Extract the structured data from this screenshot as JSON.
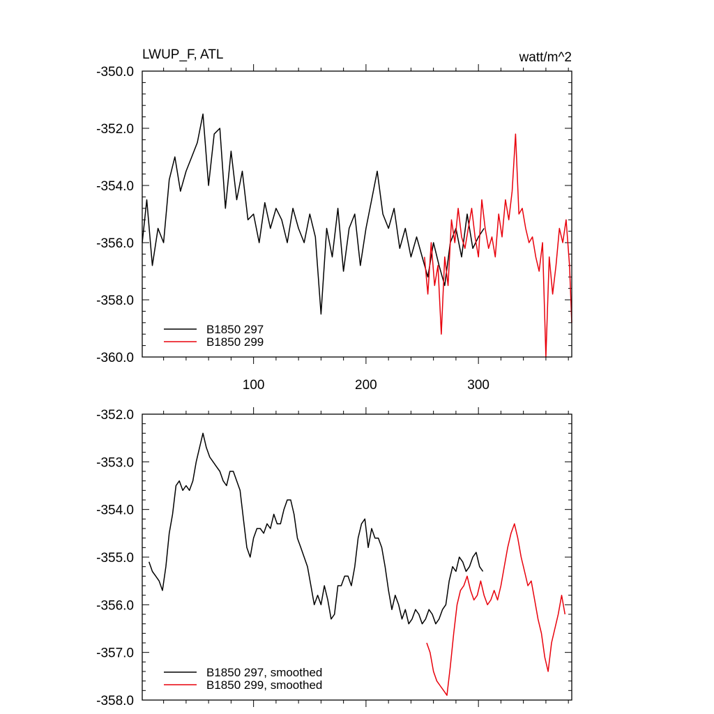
{
  "chart_data": [
    {
      "type": "line",
      "title_left": "LWUP_F, ATL",
      "title_right": "watt/m^2",
      "xlim": [
        1,
        383
      ],
      "ylim": [
        -360,
        -350
      ],
      "yticks": [
        -350,
        -352,
        -354,
        -356,
        -358,
        -360
      ],
      "ytick_labels": [
        "-350.0",
        "-352.0",
        "-354.0",
        "-356.0",
        "-358.0",
        "-360.0"
      ],
      "xticks": [
        100,
        200,
        300
      ],
      "xtick_labels": [
        "100",
        "200",
        "300"
      ],
      "legend_position": "bottom-left",
      "series": [
        {
          "name": "B1850 297",
          "color": "#000000",
          "x": [
            1,
            5,
            10,
            15,
            20,
            25,
            30,
            35,
            40,
            45,
            50,
            55,
            60,
            65,
            70,
            75,
            80,
            85,
            90,
            95,
            100,
            105,
            110,
            115,
            120,
            125,
            130,
            135,
            140,
            145,
            150,
            155,
            160,
            165,
            170,
            175,
            180,
            185,
            190,
            195,
            200,
            205,
            210,
            215,
            220,
            225,
            230,
            235,
            240,
            245,
            250,
            255,
            260,
            265,
            270,
            275,
            280,
            285,
            290,
            295,
            300,
            305
          ],
          "y": [
            -356.0,
            -354.5,
            -356.8,
            -355.5,
            -356.0,
            -353.8,
            -353.0,
            -354.2,
            -353.5,
            -353.0,
            -352.5,
            -351.5,
            -354.0,
            -352.2,
            -352.0,
            -354.8,
            -352.8,
            -354.5,
            -353.5,
            -355.2,
            -355.0,
            -356.0,
            -354.6,
            -355.5,
            -354.8,
            -355.2,
            -356.0,
            -354.8,
            -355.5,
            -356.0,
            -355.0,
            -355.8,
            -358.5,
            -355.5,
            -356.5,
            -354.8,
            -357.0,
            -355.5,
            -355.0,
            -356.8,
            -355.5,
            -354.5,
            -353.5,
            -355.0,
            -355.5,
            -354.8,
            -356.2,
            -355.5,
            -356.5,
            -355.8,
            -356.5,
            -357.2,
            -356.0,
            -356.8,
            -357.5,
            -356.0,
            -355.5,
            -356.5,
            -355.0,
            -356.2,
            -355.8,
            -355.5
          ]
        },
        {
          "name": "B1850 299",
          "color": "#e8000b",
          "x": [
            252,
            255,
            258,
            261,
            264,
            267,
            270,
            273,
            276,
            279,
            282,
            285,
            288,
            291,
            294,
            297,
            300,
            303,
            306,
            309,
            312,
            315,
            318,
            321,
            324,
            327,
            330,
            333,
            336,
            339,
            342,
            345,
            348,
            351,
            354,
            357,
            360,
            363,
            366,
            369,
            372,
            375,
            378,
            381,
            383
          ],
          "y": [
            -356.5,
            -357.8,
            -356.0,
            -357.5,
            -356.8,
            -359.2,
            -356.5,
            -357.5,
            -355.2,
            -356.0,
            -354.8,
            -355.8,
            -356.2,
            -355.5,
            -354.8,
            -355.8,
            -356.5,
            -354.5,
            -355.5,
            -356.2,
            -355.8,
            -356.5,
            -355.0,
            -355.8,
            -354.5,
            -355.2,
            -354.2,
            -352.2,
            -355.0,
            -354.8,
            -355.5,
            -356.0,
            -355.8,
            -356.5,
            -357.0,
            -356.0,
            -360.0,
            -356.5,
            -357.8,
            -356.8,
            -355.5,
            -356.0,
            -355.2,
            -356.8,
            -358.8
          ]
        }
      ]
    },
    {
      "type": "line",
      "xlim": [
        1,
        383
      ],
      "ylim": [
        -358,
        -352
      ],
      "yticks": [
        -352,
        -353,
        -354,
        -355,
        -356,
        -357,
        -358
      ],
      "ytick_labels": [
        "-352.0",
        "-353.0",
        "-354.0",
        "-355.0",
        "-356.0",
        "-357.0",
        "-358.0"
      ],
      "xticks": [
        100,
        200,
        300
      ],
      "legend_position": "bottom-left",
      "series": [
        {
          "name": "B1850 297, smoothed",
          "color": "#000000",
          "x": [
            7,
            10,
            13,
            16,
            19,
            22,
            25,
            28,
            31,
            34,
            37,
            40,
            43,
            46,
            49,
            52,
            55,
            58,
            61,
            64,
            67,
            70,
            73,
            76,
            79,
            82,
            85,
            88,
            91,
            94,
            97,
            100,
            103,
            106,
            109,
            112,
            115,
            118,
            121,
            124,
            127,
            130,
            133,
            136,
            139,
            142,
            145,
            148,
            151,
            154,
            157,
            160,
            163,
            166,
            169,
            172,
            175,
            178,
            181,
            184,
            187,
            190,
            193,
            196,
            199,
            202,
            205,
            208,
            211,
            214,
            217,
            220,
            223,
            226,
            229,
            232,
            235,
            238,
            241,
            244,
            247,
            250,
            253,
            256,
            259,
            262,
            265,
            268,
            271,
            274,
            277,
            280,
            283,
            286,
            289,
            292,
            295,
            298,
            301,
            304
          ],
          "y": [
            -355.1,
            -355.3,
            -355.4,
            -355.5,
            -355.7,
            -355.2,
            -354.5,
            -354.1,
            -353.5,
            -353.4,
            -353.6,
            -353.5,
            -353.6,
            -353.4,
            -353.0,
            -352.7,
            -352.4,
            -352.7,
            -352.9,
            -353.0,
            -353.1,
            -353.2,
            -353.4,
            -353.5,
            -353.2,
            -353.2,
            -353.4,
            -353.6,
            -354.2,
            -354.8,
            -355.0,
            -354.6,
            -354.4,
            -354.4,
            -354.5,
            -354.3,
            -354.4,
            -354.1,
            -354.3,
            -354.3,
            -354.0,
            -353.8,
            -353.8,
            -354.1,
            -354.6,
            -354.8,
            -355.0,
            -355.2,
            -355.6,
            -356.0,
            -355.8,
            -356.0,
            -355.6,
            -355.9,
            -356.3,
            -356.2,
            -355.6,
            -355.6,
            -355.4,
            -355.4,
            -355.6,
            -355.2,
            -354.6,
            -354.3,
            -354.2,
            -354.8,
            -354.4,
            -354.6,
            -354.6,
            -354.8,
            -355.2,
            -355.7,
            -356.1,
            -355.8,
            -356.0,
            -356.3,
            -356.1,
            -356.4,
            -356.3,
            -356.1,
            -356.2,
            -356.4,
            -356.3,
            -356.1,
            -356.2,
            -356.4,
            -356.3,
            -356.1,
            -356.0,
            -355.5,
            -355.2,
            -355.3,
            -355.0,
            -355.1,
            -355.3,
            -355.2,
            -355.0,
            -354.9,
            -355.2,
            -355.3
          ]
        },
        {
          "name": "B1850 299, smoothed",
          "color": "#e8000b",
          "x": [
            254,
            257,
            260,
            263,
            266,
            269,
            272,
            275,
            278,
            281,
            284,
            287,
            290,
            293,
            296,
            299,
            302,
            305,
            308,
            311,
            314,
            317,
            320,
            323,
            326,
            329,
            332,
            335,
            338,
            341,
            344,
            347,
            350,
            353,
            356,
            359,
            362,
            365,
            368,
            371,
            374,
            377
          ],
          "y": [
            -356.8,
            -357.0,
            -357.4,
            -357.6,
            -357.7,
            -357.8,
            -357.9,
            -357.3,
            -356.6,
            -356.0,
            -355.7,
            -355.6,
            -355.4,
            -355.7,
            -355.9,
            -355.8,
            -355.5,
            -355.8,
            -356.0,
            -355.9,
            -355.7,
            -355.9,
            -355.6,
            -355.2,
            -354.8,
            -354.5,
            -354.3,
            -354.6,
            -355.0,
            -355.3,
            -355.6,
            -355.5,
            -355.9,
            -356.3,
            -356.6,
            -357.1,
            -357.4,
            -356.8,
            -356.5,
            -356.2,
            -355.8,
            -356.2
          ]
        }
      ]
    }
  ]
}
